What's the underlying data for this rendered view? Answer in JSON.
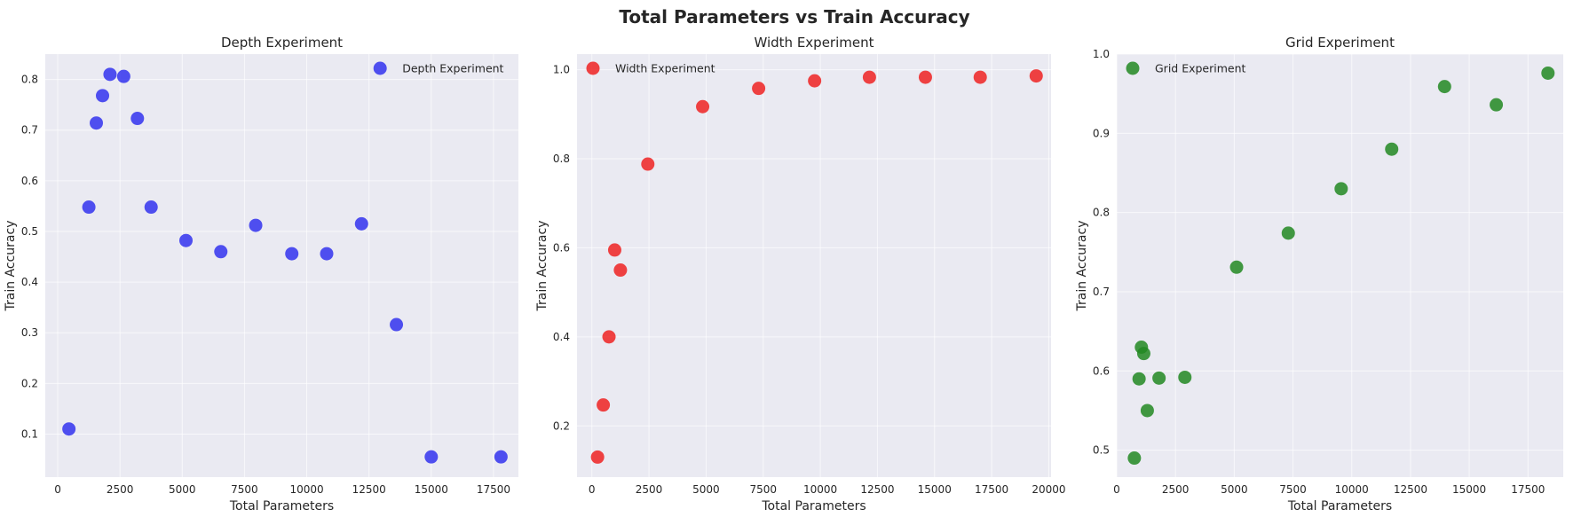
{
  "figure": {
    "title": "Total Parameters vs Train Accuracy"
  },
  "chart_data": [
    {
      "type": "scatter",
      "title": "Depth Experiment",
      "xlabel": "Total Parameters",
      "ylabel": "Train Accuracy",
      "xlim": [
        -500,
        18500
      ],
      "ylim": [
        0.015,
        0.85
      ],
      "xticks": [
        0,
        2500,
        5000,
        7500,
        10000,
        12500,
        15000,
        17500
      ],
      "yticks": [
        0.1,
        0.2,
        0.3,
        0.4,
        0.5,
        0.6,
        0.7,
        0.8
      ],
      "ytick_decimals": 1,
      "grid": true,
      "legend_position": "top-right",
      "series": [
        {
          "name": "Depth Experiment",
          "color": "#3333ee",
          "points": [
            [
              450,
              0.11
            ],
            [
              1250,
              0.548
            ],
            [
              1550,
              0.714
            ],
            [
              1800,
              0.768
            ],
            [
              2100,
              0.81
            ],
            [
              2650,
              0.806
            ],
            [
              3200,
              0.723
            ],
            [
              3750,
              0.548
            ],
            [
              5150,
              0.482
            ],
            [
              6550,
              0.46
            ],
            [
              7950,
              0.512
            ],
            [
              9400,
              0.456
            ],
            [
              10800,
              0.456
            ],
            [
              12200,
              0.515
            ],
            [
              13600,
              0.316
            ],
            [
              15000,
              0.055
            ],
            [
              17800,
              0.055
            ]
          ]
        }
      ]
    },
    {
      "type": "scatter",
      "title": "Width Experiment",
      "xlabel": "Total Parameters",
      "ylabel": "Train Accuracy",
      "xlim": [
        -650,
        20100
      ],
      "ylim": [
        0.085,
        1.035
      ],
      "xticks": [
        0,
        2500,
        5000,
        7500,
        10000,
        12500,
        15000,
        17500,
        20000
      ],
      "yticks": [
        0.2,
        0.4,
        0.6,
        0.8,
        1.0
      ],
      "ytick_decimals": 1,
      "grid": true,
      "legend_position": "top-left",
      "series": [
        {
          "name": "Width Experiment",
          "color": "#ee2222",
          "points": [
            [
              250,
              0.13
            ],
            [
              500,
              0.247
            ],
            [
              750,
              0.4
            ],
            [
              1000,
              0.595
            ],
            [
              1250,
              0.55
            ],
            [
              2450,
              0.788
            ],
            [
              4850,
              0.917
            ],
            [
              7300,
              0.958
            ],
            [
              9750,
              0.975
            ],
            [
              12150,
              0.983
            ],
            [
              14600,
              0.983
            ],
            [
              17000,
              0.983
            ],
            [
              19450,
              0.986
            ]
          ]
        }
      ]
    },
    {
      "type": "scatter",
      "title": "Grid Experiment",
      "xlabel": "Total Parameters",
      "ylabel": "Train Accuracy",
      "xlim": [
        0,
        19000
      ],
      "ylim": [
        0.466,
        1.0
      ],
      "xticks": [
        0,
        2500,
        5000,
        7500,
        10000,
        12500,
        15000,
        17500
      ],
      "yticks": [
        0.5,
        0.6,
        0.7,
        0.8,
        0.9,
        1.0
      ],
      "ytick_decimals": 1,
      "grid": true,
      "legend_position": "top-left",
      "series": [
        {
          "name": "Grid Experiment",
          "color": "#228822",
          "points": [
            [
              750,
              0.49
            ],
            [
              950,
              0.59
            ],
            [
              1050,
              0.63
            ],
            [
              1150,
              0.622
            ],
            [
              1300,
              0.55
            ],
            [
              1800,
              0.591
            ],
            [
              2900,
              0.592
            ],
            [
              5100,
              0.731
            ],
            [
              7300,
              0.774
            ],
            [
              9550,
              0.83
            ],
            [
              11700,
              0.88
            ],
            [
              13950,
              0.959
            ],
            [
              16150,
              0.936
            ],
            [
              18350,
              0.976
            ]
          ]
        }
      ]
    }
  ]
}
